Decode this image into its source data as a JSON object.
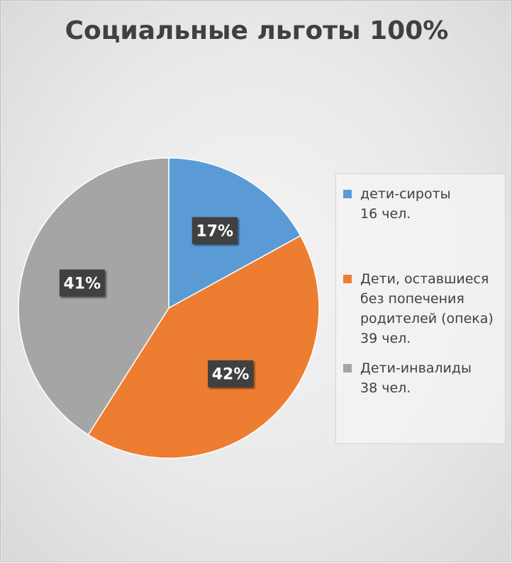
{
  "chart_data": {
    "type": "pie",
    "title": "Социальные льготы 100%",
    "categories": [
      "дети-сироты",
      "Дети, оставшиеся без попечения родителей (опека)",
      "Дети-инвалиды"
    ],
    "values": [
      17,
      42,
      41
    ],
    "data_labels": [
      "17%",
      "42%",
      "41%"
    ],
    "legend": [
      {
        "name": "дети-сироты",
        "count": "16 чел.",
        "color": "#5b9bd5"
      },
      {
        "name": "Дети, оставшиеся без попечения родителей (опека)",
        "count": "39 чел.",
        "color": "#ed7d31"
      },
      {
        "name": "Дети-инвалиды",
        "count": "38 чел.",
        "color": "#a5a5a5"
      }
    ],
    "legend_position": "right",
    "colors": [
      "#5b9bd5",
      "#ed7d31",
      "#a5a5a5"
    ]
  }
}
